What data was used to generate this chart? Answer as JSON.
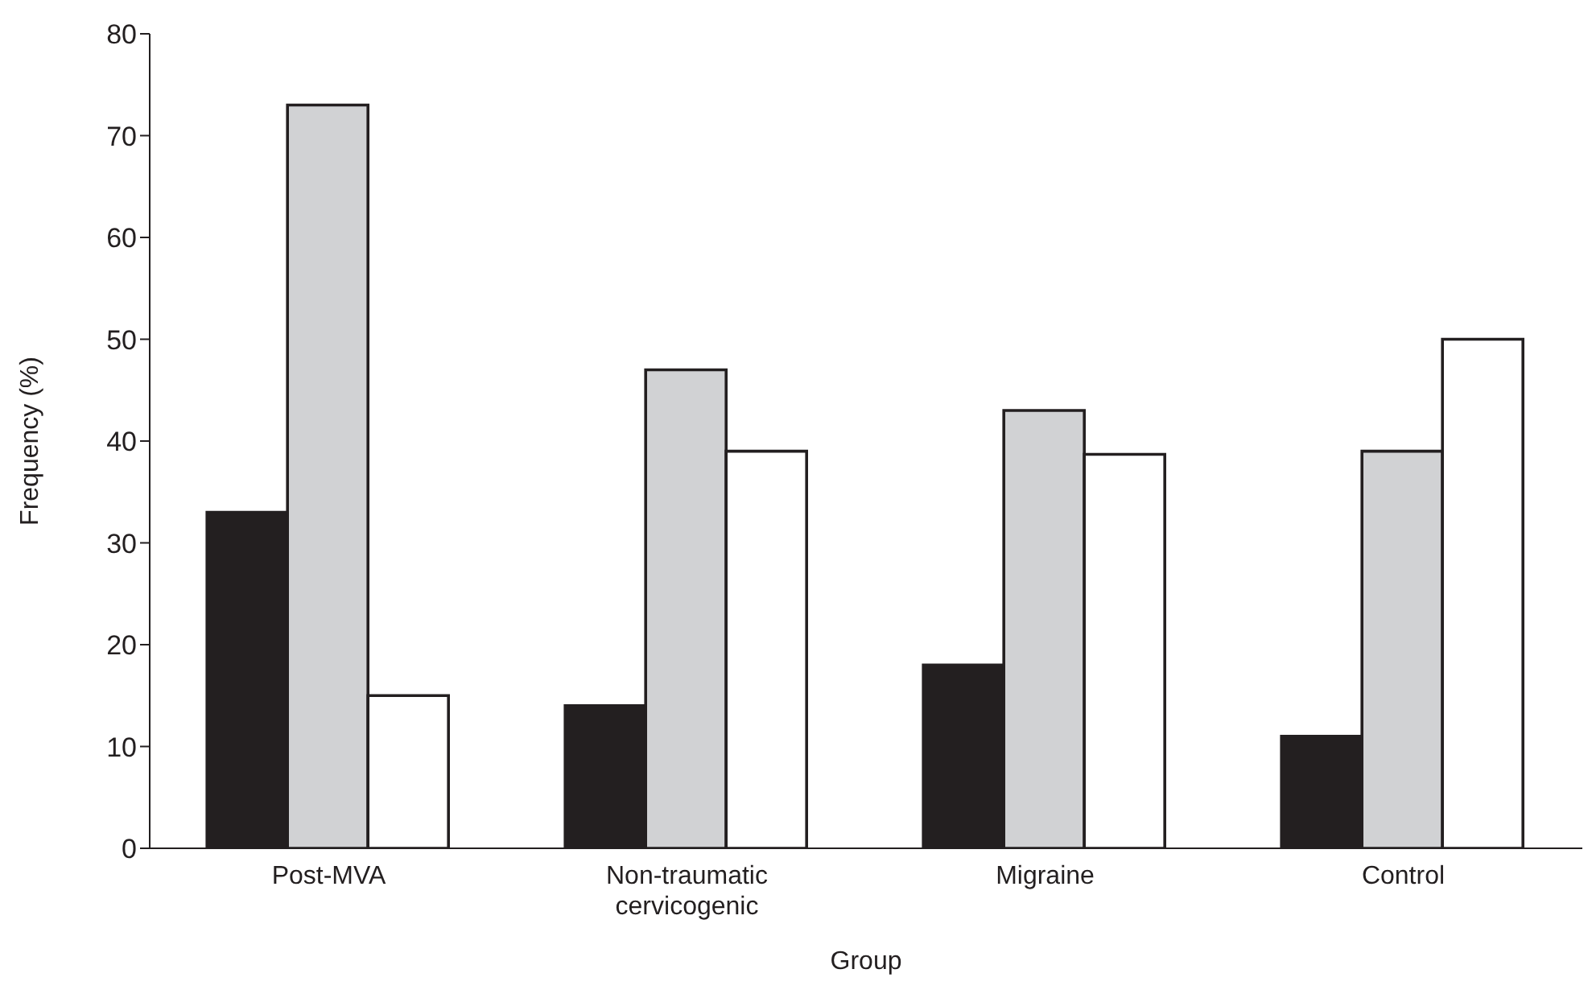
{
  "chart_data": {
    "type": "bar",
    "xlabel": "Group",
    "ylabel": "Frequency (%)",
    "categories": [
      "Post-MVA",
      "Non-traumatic cervicogenic",
      "Migraine",
      "Control"
    ],
    "series": [
      {
        "color": "#231f20",
        "values": [
          33,
          14,
          18,
          11
        ]
      },
      {
        "color": "#d1d2d4",
        "values": [
          73,
          47,
          43,
          39
        ]
      },
      {
        "color": "#ffffff",
        "values": [
          15,
          39,
          38.7,
          50
        ]
      }
    ],
    "ylim": [
      0,
      80
    ],
    "yticks": [
      0,
      10,
      20,
      30,
      40,
      50,
      60,
      70,
      80
    ],
    "grid": false,
    "legend": false
  }
}
